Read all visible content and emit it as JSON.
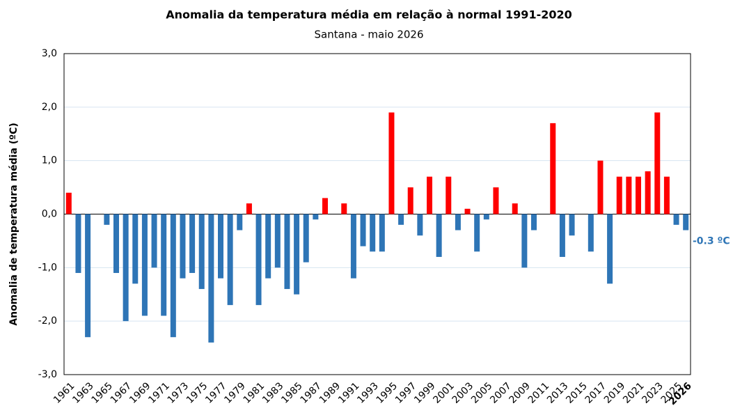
{
  "chart_data": {
    "type": "bar",
    "title": "Anomalia da temperatura média em relação à normal 1991-2020",
    "subtitle": "Santana - maio 2026",
    "y_label": "Anomalia de temperatura média (ºC)",
    "annotation": "-0.3 ºC",
    "categories": [
      "1961",
      null,
      "1963",
      null,
      "1965",
      null,
      "1967",
      null,
      "1969",
      null,
      "1971",
      null,
      "1973",
      null,
      "1975",
      null,
      "1977",
      null,
      "1979",
      null,
      "1981",
      null,
      "1983",
      null,
      "1985",
      null,
      "1987",
      null,
      "1989",
      null,
      "1991",
      null,
      "1993",
      null,
      "1995",
      null,
      "1997",
      null,
      "1999",
      null,
      "2001",
      null,
      "2003",
      null,
      "2005",
      null,
      "2007",
      null,
      "2009",
      null,
      "2011",
      null,
      "2013",
      null,
      "2015",
      null,
      "2017",
      null,
      "2019",
      null,
      "2021",
      null,
      "2023",
      null,
      "2025",
      "2026"
    ],
    "values": [
      0.4,
      -1.1,
      -2.3,
      0,
      -0.2,
      -1.1,
      -2.0,
      -1.3,
      -1.9,
      -1.0,
      -1.9,
      -2.3,
      -1.2,
      -1.1,
      -1.4,
      -2.4,
      -1.2,
      -1.7,
      -0.3,
      0.2,
      -1.7,
      -1.2,
      -1.0,
      -1.4,
      -1.5,
      -0.9,
      -0.1,
      0.3,
      0,
      0.2,
      -1.2,
      -0.6,
      -0.7,
      -0.7,
      1.9,
      -0.2,
      0.5,
      -0.4,
      0.7,
      -0.8,
      0.7,
      -0.3,
      0.1,
      -0.7,
      -0.1,
      0.5,
      0,
      0.2,
      -1.0,
      -0.3,
      0,
      1.7,
      -0.8,
      -0.4,
      0,
      -0.7,
      1.0,
      -1.3,
      0.7,
      0.7,
      0.7,
      0.8,
      1.9,
      0.7,
      -0.2,
      -0.3
    ],
    "colors": {
      "positive": "#ff0000",
      "negative": "#2e75b6"
    },
    "ylim": [
      -3,
      3
    ],
    "yticks": [
      {
        "value": -3,
        "label": "-3,0"
      },
      {
        "value": -2,
        "label": "-2,0"
      },
      {
        "value": -1,
        "label": "-1,0"
      },
      {
        "value": 0,
        "label": "0,0"
      },
      {
        "value": 1,
        "label": "1,0"
      },
      {
        "value": 2,
        "label": "2,0"
      },
      {
        "value": 3,
        "label": "3,0"
      }
    ],
    "grid": true
  }
}
